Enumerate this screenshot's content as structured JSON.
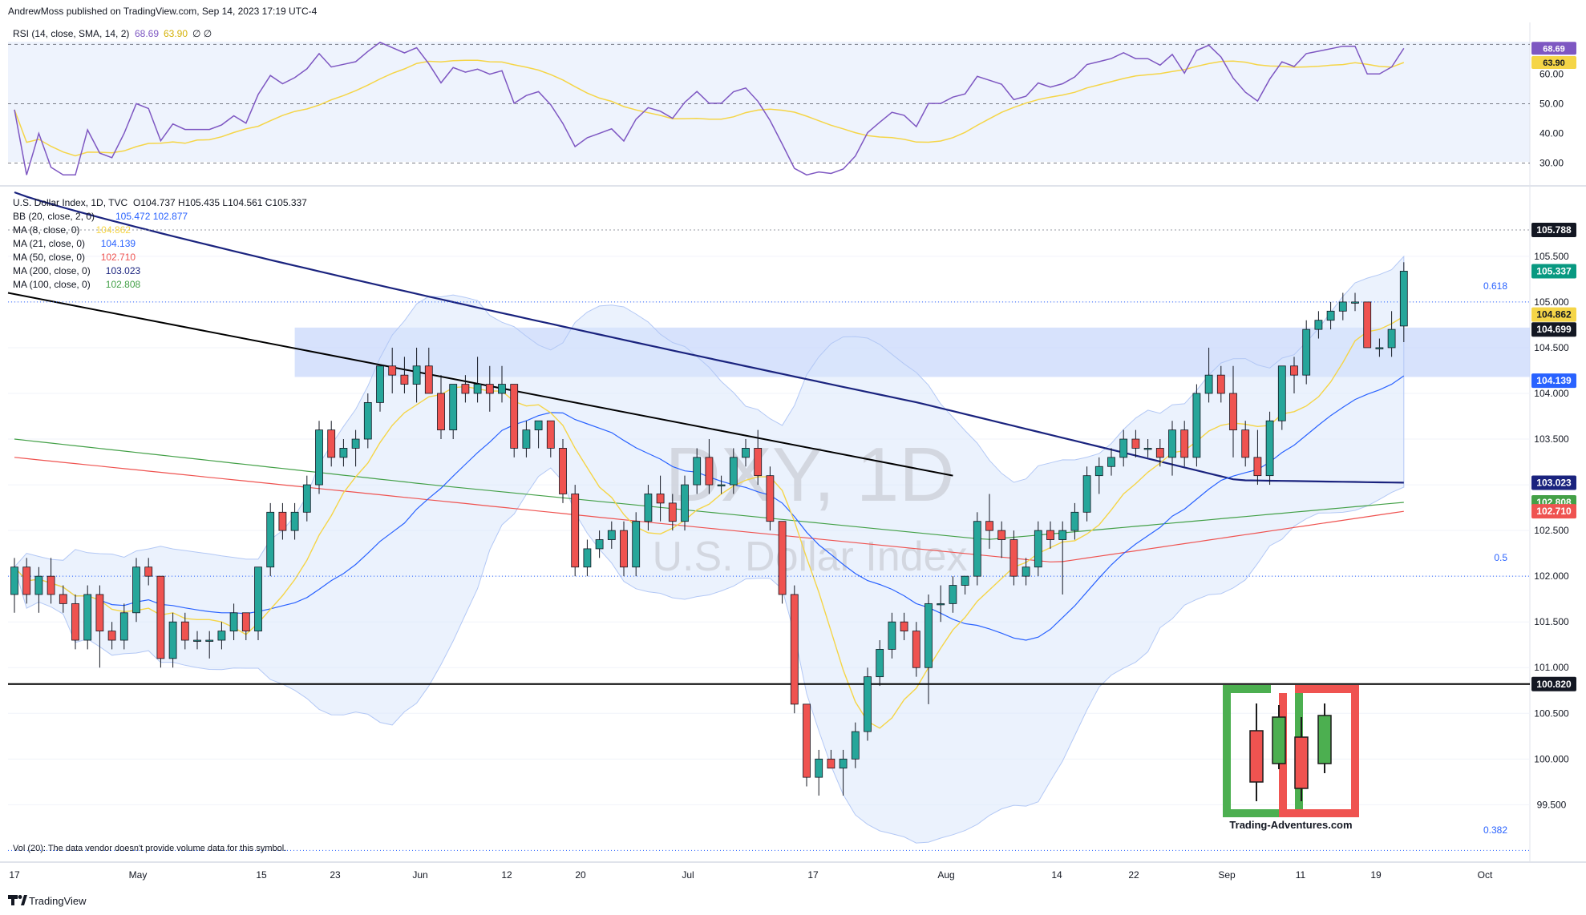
{
  "header": {
    "published": "AndrewMoss published on TradingView.com, Sep 14, 2023 17:19 UTC-4"
  },
  "rsi_pane": {
    "title": "RSI (14, close, SMA, 14, 2)",
    "rsi_value": "68.69",
    "sma_value": "63.90",
    "extra": "∅ ∅",
    "axis_ticks": [
      "60.00",
      "50.00",
      "40.00",
      "30.00"
    ],
    "badge_rsi": "68.69",
    "badge_sma": "63.90",
    "colors": {
      "rsi": "#7e57c2",
      "sma": "#f5d547",
      "bg": "#eef3fd"
    }
  },
  "legend": {
    "symbol": "U.S. Dollar Index, 1D, TVC",
    "ohlc": "O104.737  H105.435  L104.561  C105.337",
    "rows": [
      {
        "label": "BB (20, close, 2, 0)",
        "value": "105.472  102.877",
        "color": "#2962ff"
      },
      {
        "label": "MA (8, close, 0)",
        "value": "104.862",
        "color": "#f5d547"
      },
      {
        "label": "MA (21, close, 0)",
        "value": "104.139",
        "color": "#2962ff"
      },
      {
        "label": "MA (50, close, 0)",
        "value": "102.710",
        "color": "#ef5350"
      },
      {
        "label": "MA (200, close, 0)",
        "value": "103.023",
        "color": "#1a237e"
      },
      {
        "label": "MA (100, close, 0)",
        "value": "102.808",
        "color": "#43a047"
      }
    ]
  },
  "watermark": {
    "big": "DXY, 1D",
    "sub": "U.S. Dollar Index"
  },
  "fib": {
    "f618": "0.618",
    "f5": "0.5",
    "f382": "0.382"
  },
  "price_badges": [
    {
      "label": "105.788",
      "price": 105.788,
      "bg": "#131722",
      "fg": "#ffffff"
    },
    {
      "label": "105.337",
      "price": 105.337,
      "bg": "#089981",
      "fg": "#ffffff"
    },
    {
      "label": "104.862",
      "price": 104.862,
      "bg": "#f5d547",
      "fg": "#131722"
    },
    {
      "label": "104.699",
      "price": 104.699,
      "bg": "#131722",
      "fg": "#ffffff"
    },
    {
      "label": "104.139",
      "price": 104.139,
      "bg": "#2962ff",
      "fg": "#ffffff"
    },
    {
      "label": "103.023",
      "price": 103.023,
      "bg": "#1a237e",
      "fg": "#ffffff"
    },
    {
      "label": "102.808",
      "price": 102.808,
      "bg": "#43a047",
      "fg": "#ffffff"
    },
    {
      "label": "102.710",
      "price": 102.71,
      "bg": "#ef5350",
      "fg": "#ffffff"
    },
    {
      "label": "100.820",
      "price": 100.82,
      "bg": "#131722",
      "fg": "#ffffff"
    }
  ],
  "volume_note": "Vol (20): The data vendor doesn't provide volume data for this symbol.",
  "x_axis_labels": [
    "17",
    "May",
    "15",
    "23",
    "Jun",
    "12",
    "20",
    "Jul",
    "17",
    "Aug",
    "14",
    "22",
    "Sep",
    "11",
    "19",
    "Oct"
  ],
  "logo": {
    "text": "Trading-Adventures.com"
  },
  "footer": {
    "brand": "TradingView"
  },
  "colors": {
    "up": "#26a69a",
    "down": "#ef5350",
    "ma200": "#1a237e",
    "zone": "#c9d8fb"
  },
  "chart_data": [
    {
      "type": "candlestick",
      "title": "U.S. Dollar Index, 1D, TVC",
      "ylim": [
        99.1,
        106.2
      ],
      "y_ticks": [
        "105.500",
        "105.000",
        "104.500",
        "104.000",
        "103.500",
        "103.000",
        "102.500",
        "102.000",
        "101.500",
        "101.000",
        "100.500",
        "100.000",
        "99.500"
      ],
      "ohlc": [
        [
          101.8,
          102.2,
          101.6,
          102.1
        ],
        [
          102.1,
          102.2,
          101.7,
          101.8
        ],
        [
          101.8,
          102.1,
          101.6,
          102.0
        ],
        [
          102.0,
          102.2,
          101.7,
          101.8
        ],
        [
          101.8,
          101.9,
          101.6,
          101.7
        ],
        [
          101.7,
          101.8,
          101.2,
          101.3
        ],
        [
          101.3,
          101.9,
          101.2,
          101.8
        ],
        [
          101.8,
          101.9,
          101.0,
          101.4
        ],
        [
          101.4,
          101.5,
          101.2,
          101.3
        ],
        [
          101.3,
          101.7,
          101.2,
          101.6
        ],
        [
          101.6,
          102.2,
          101.5,
          102.1
        ],
        [
          102.1,
          102.2,
          101.9,
          102.0
        ],
        [
          102.0,
          102.0,
          101.0,
          101.1
        ],
        [
          101.1,
          101.6,
          101.0,
          101.5
        ],
        [
          101.5,
          101.6,
          101.2,
          101.3
        ],
        [
          101.3,
          101.4,
          101.2,
          101.3
        ],
        [
          101.3,
          101.4,
          101.1,
          101.3
        ],
        [
          101.3,
          101.5,
          101.2,
          101.4
        ],
        [
          101.4,
          101.7,
          101.3,
          101.6
        ],
        [
          101.6,
          101.6,
          101.3,
          101.4
        ],
        [
          101.4,
          102.1,
          101.3,
          102.1
        ],
        [
          102.1,
          102.8,
          102.0,
          102.7
        ],
        [
          102.7,
          102.8,
          102.4,
          102.5
        ],
        [
          102.5,
          102.8,
          102.4,
          102.7
        ],
        [
          102.7,
          103.1,
          102.6,
          103.0
        ],
        [
          103.0,
          103.7,
          102.9,
          103.6
        ],
        [
          103.6,
          103.7,
          103.2,
          103.3
        ],
        [
          103.3,
          103.5,
          103.2,
          103.4
        ],
        [
          103.4,
          103.6,
          103.2,
          103.5
        ],
        [
          103.5,
          104.0,
          103.4,
          103.9
        ],
        [
          103.9,
          104.3,
          103.8,
          104.3
        ],
        [
          104.3,
          104.5,
          104.0,
          104.2
        ],
        [
          104.2,
          104.4,
          104.0,
          104.1
        ],
        [
          104.1,
          104.5,
          103.9,
          104.3
        ],
        [
          104.3,
          104.5,
          104.0,
          104.0
        ],
        [
          104.0,
          104.2,
          103.5,
          103.6
        ],
        [
          103.6,
          104.1,
          103.5,
          104.1
        ],
        [
          104.1,
          104.2,
          103.9,
          104.0
        ],
        [
          104.0,
          104.4,
          103.9,
          104.1
        ],
        [
          104.1,
          104.3,
          103.8,
          104.0
        ],
        [
          104.0,
          104.3,
          103.9,
          104.1
        ],
        [
          104.1,
          104.1,
          103.3,
          103.4
        ],
        [
          103.4,
          103.7,
          103.3,
          103.6
        ],
        [
          103.6,
          103.7,
          103.4,
          103.7
        ],
        [
          103.7,
          103.7,
          103.3,
          103.4
        ],
        [
          103.4,
          103.5,
          102.8,
          102.9
        ],
        [
          102.9,
          103.0,
          102.0,
          102.1
        ],
        [
          102.1,
          102.4,
          102.0,
          102.3
        ],
        [
          102.3,
          102.5,
          102.2,
          102.4
        ],
        [
          102.4,
          102.6,
          102.3,
          102.5
        ],
        [
          102.5,
          102.6,
          102.0,
          102.1
        ],
        [
          102.1,
          102.7,
          102.0,
          102.6
        ],
        [
          102.6,
          103.0,
          102.5,
          102.9
        ],
        [
          102.9,
          103.1,
          102.6,
          102.8
        ],
        [
          102.8,
          102.9,
          102.5,
          102.6
        ],
        [
          102.6,
          103.1,
          102.5,
          103.0
        ],
        [
          103.0,
          103.4,
          102.9,
          103.3
        ],
        [
          103.3,
          103.5,
          102.9,
          103.0
        ],
        [
          103.0,
          103.1,
          102.9,
          103.0
        ],
        [
          103.0,
          103.4,
          102.9,
          103.3
        ],
        [
          103.3,
          103.5,
          103.2,
          103.4
        ],
        [
          103.4,
          103.6,
          103.0,
          103.1
        ],
        [
          103.1,
          103.2,
          102.5,
          102.6
        ],
        [
          102.6,
          102.6,
          101.7,
          101.8
        ],
        [
          101.8,
          101.9,
          100.5,
          100.6
        ],
        [
          100.6,
          100.6,
          99.7,
          99.8
        ],
        [
          99.8,
          100.1,
          99.6,
          100.0
        ],
        [
          100.0,
          100.1,
          99.9,
          99.9
        ],
        [
          99.9,
          100.1,
          99.6,
          100.0
        ],
        [
          100.0,
          100.4,
          99.9,
          100.3
        ],
        [
          100.3,
          101.0,
          100.2,
          100.9
        ],
        [
          100.9,
          101.3,
          100.8,
          101.2
        ],
        [
          101.2,
          101.6,
          101.1,
          101.5
        ],
        [
          101.5,
          101.6,
          101.3,
          101.4
        ],
        [
          101.4,
          101.5,
          100.9,
          101.0
        ],
        [
          101.0,
          101.8,
          100.6,
          101.7
        ],
        [
          101.7,
          101.9,
          101.5,
          101.7
        ],
        [
          101.7,
          102.0,
          101.6,
          101.9
        ],
        [
          101.9,
          102.0,
          101.8,
          102.0
        ],
        [
          102.0,
          102.7,
          101.9,
          102.6
        ],
        [
          102.6,
          102.9,
          102.3,
          102.5
        ],
        [
          102.5,
          102.6,
          102.2,
          102.4
        ],
        [
          102.4,
          102.5,
          101.9,
          102.0
        ],
        [
          102.0,
          102.2,
          101.9,
          102.1
        ],
        [
          102.1,
          102.6,
          102.0,
          102.5
        ],
        [
          102.5,
          102.6,
          102.3,
          102.4
        ],
        [
          102.4,
          102.6,
          101.8,
          102.5
        ],
        [
          102.5,
          102.8,
          102.4,
          102.7
        ],
        [
          102.7,
          103.2,
          102.6,
          103.1
        ],
        [
          103.1,
          103.3,
          102.9,
          103.2
        ],
        [
          103.2,
          103.4,
          103.1,
          103.3
        ],
        [
          103.3,
          103.6,
          103.2,
          103.5
        ],
        [
          103.5,
          103.6,
          103.3,
          103.4
        ],
        [
          103.4,
          103.5,
          103.3,
          103.4
        ],
        [
          103.4,
          103.5,
          103.2,
          103.3
        ],
        [
          103.3,
          103.7,
          103.1,
          103.6
        ],
        [
          103.6,
          103.7,
          103.2,
          103.3
        ],
        [
          103.3,
          104.1,
          103.2,
          104.0
        ],
        [
          104.0,
          104.5,
          103.9,
          104.2
        ],
        [
          104.2,
          104.3,
          103.9,
          104.0
        ],
        [
          104.0,
          104.3,
          103.3,
          103.6
        ],
        [
          103.6,
          103.7,
          103.2,
          103.3
        ],
        [
          103.3,
          103.6,
          103.0,
          103.1
        ],
        [
          103.1,
          103.8,
          103.0,
          103.7
        ],
        [
          103.7,
          104.3,
          103.6,
          104.3
        ],
        [
          104.3,
          104.4,
          104.0,
          104.2
        ],
        [
          104.2,
          104.8,
          104.1,
          104.7
        ],
        [
          104.7,
          104.9,
          104.6,
          104.8
        ],
        [
          104.8,
          105.0,
          104.7,
          104.9
        ],
        [
          104.9,
          105.1,
          104.8,
          105.0
        ],
        [
          105.0,
          105.1,
          104.9,
          105.0
        ],
        [
          105.0,
          105.0,
          104.5,
          104.5
        ],
        [
          104.5,
          104.6,
          104.4,
          104.5
        ],
        [
          104.5,
          104.9,
          104.4,
          104.7
        ],
        [
          104.737,
          105.435,
          104.561,
          105.337
        ]
      ],
      "series": [
        {
          "name": "MA (8, close, 0)",
          "last": 104.862
        },
        {
          "name": "MA (21, close, 0)",
          "last": 104.139
        },
        {
          "name": "MA (50, close, 0)",
          "last": 102.71
        },
        {
          "name": "MA (100, close, 0)",
          "last": 102.808
        },
        {
          "name": "MA (200, close, 0)",
          "last": 103.023
        },
        {
          "name": "BB (20, close, 2, 0)",
          "upper_last": 105.472,
          "lower_last": 102.877
        }
      ],
      "horizontal_levels": [
        100.82,
        105.788
      ],
      "zone": [
        104.18,
        104.72
      ],
      "trendline": {
        "from": 105.1,
        "to": 103.1
      },
      "fib_levels": {
        "0.618": 105.0,
        "0.5": 102.0,
        "0.382": 99.0
      }
    },
    {
      "type": "line",
      "title": "RSI (14, close, SMA, 14, 2)",
      "ylim": [
        25,
        72
      ],
      "levels": [
        70,
        50,
        30
      ],
      "series": [
        {
          "name": "RSI",
          "last": 68.69
        },
        {
          "name": "SMA",
          "last": 63.9
        }
      ]
    }
  ]
}
